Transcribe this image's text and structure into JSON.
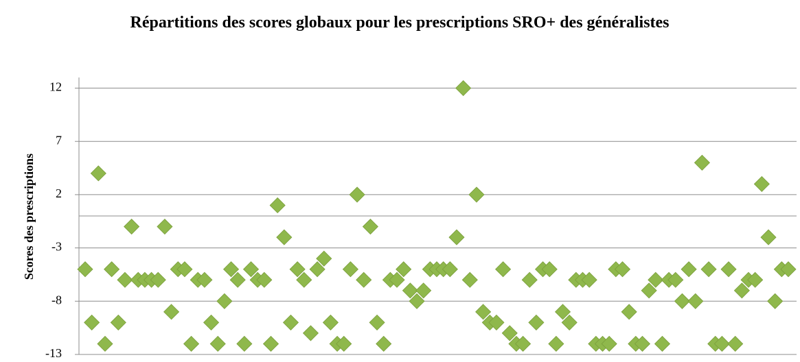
{
  "chart_data": {
    "type": "scatter",
    "title": "Répartitions des scores globaux pour les prescriptions SRO+ des généralistes",
    "y_label": "Scores des prescriptions",
    "color": "#8fb84c",
    "ylim": [
      -13,
      13
    ],
    "yticks": [
      -13,
      -8,
      -3,
      2,
      7,
      12
    ],
    "grid": true,
    "values": [
      -5,
      -10,
      4,
      -12,
      -5,
      -10,
      -6,
      -1,
      -6,
      -6,
      -6,
      -6,
      -1,
      -9,
      -5,
      -5,
      -12,
      -6,
      -6,
      -10,
      -12,
      -8,
      -5,
      -6,
      -12,
      -5,
      -6,
      -6,
      -12,
      1,
      -2,
      -10,
      -5,
      -6,
      -11,
      -5,
      -4,
      -10,
      -12,
      -12,
      -5,
      2,
      -6,
      -1,
      -10,
      -12,
      -6,
      -6,
      -5,
      -7,
      -8,
      -7,
      -5,
      -5,
      -5,
      -5,
      -2,
      12,
      -6,
      2,
      -9,
      -10,
      -10,
      -5,
      -11,
      -12,
      -12,
      -6,
      -10,
      -5,
      -5,
      -12,
      -9,
      -10,
      -6,
      -6,
      -6,
      -12,
      -12,
      -12,
      -5,
      -5,
      -9,
      -12,
      -12,
      -7,
      -6,
      -12,
      -6,
      -6,
      -8,
      -5,
      -8,
      5,
      -5,
      -12,
      -12,
      -5,
      -12,
      -7,
      -6,
      -6,
      3,
      -2,
      -8,
      -5,
      -5
    ]
  }
}
